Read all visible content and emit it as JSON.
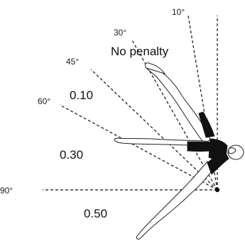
{
  "diagram": {
    "angle_labels": {
      "a10": "10°",
      "a30": "30°",
      "a45": "45°",
      "a60": "60°",
      "a90": "90°"
    },
    "penalty_labels": {
      "none": "No penalty",
      "p010": "0.10",
      "p030": "0.30",
      "p050": "0.50"
    },
    "colors": {
      "ink": "#111111",
      "background": "#ffffff"
    }
  }
}
